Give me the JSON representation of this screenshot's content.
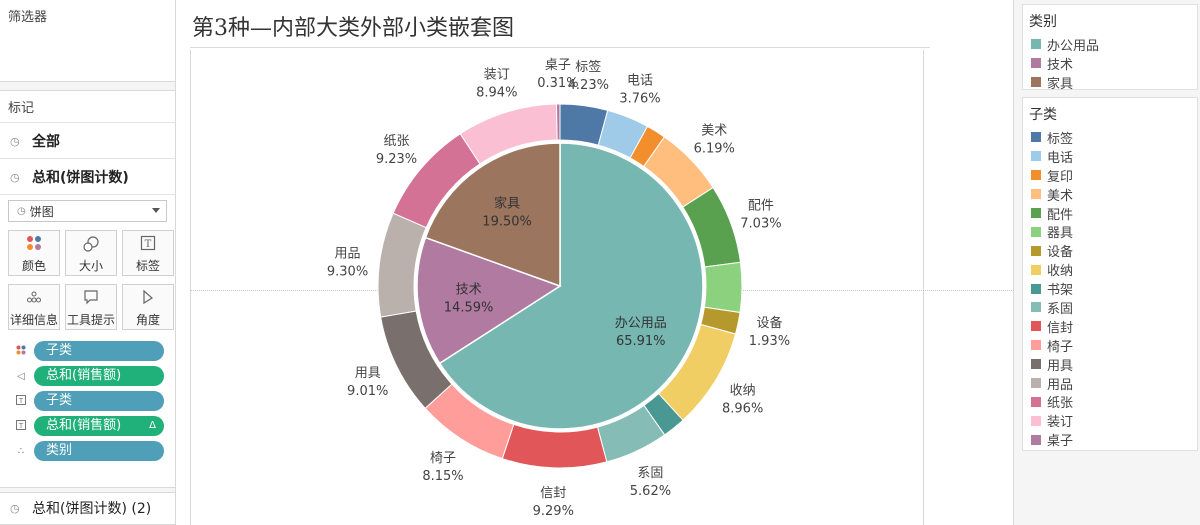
{
  "filters": {
    "title": "筛选器"
  },
  "marks": {
    "title": "标记",
    "all_label": "全部",
    "sum_label": "总和(饼图计数)",
    "mark_type": "饼图",
    "buttons": [
      {
        "label": "颜色",
        "icon": "color-dots-icon"
      },
      {
        "label": "大小",
        "icon": "size-icon"
      },
      {
        "label": "标签",
        "icon": "label-icon"
      },
      {
        "label": "详细信息",
        "icon": "detail-icon"
      },
      {
        "label": "工具提示",
        "icon": "tooltip-icon"
      },
      {
        "label": "角度",
        "icon": "angle-icon"
      }
    ],
    "pills": [
      {
        "label": "子类",
        "kind": "color",
        "color": "blue"
      },
      {
        "label": "总和(销售额)",
        "kind": "angle",
        "color": "green"
      },
      {
        "label": "子类",
        "kind": "label",
        "color": "blue"
      },
      {
        "label": "总和(销售额)",
        "kind": "label",
        "color": "green",
        "delta": "Δ"
      },
      {
        "label": "类别",
        "kind": "detail",
        "color": "blue"
      }
    ],
    "sum2_label": "总和(饼图计数) (2)"
  },
  "sheet": {
    "title": "第3种—内部大类外部小类嵌套图"
  },
  "legend_category": {
    "title": "类别",
    "items": [
      {
        "label": "办公用品",
        "color": "#76b7b2"
      },
      {
        "label": "技术",
        "color": "#b07aa1"
      },
      {
        "label": "家具",
        "color": "#9c755f"
      }
    ]
  },
  "legend_subcategory": {
    "title": "子类",
    "items": [
      {
        "label": "标签",
        "color": "#4e79a7"
      },
      {
        "label": "电话",
        "color": "#a0cbe8"
      },
      {
        "label": "复印",
        "color": "#f28e2b"
      },
      {
        "label": "美术",
        "color": "#ffbe7d"
      },
      {
        "label": "配件",
        "color": "#59a14f"
      },
      {
        "label": "器具",
        "color": "#8cd17d"
      },
      {
        "label": "设备",
        "color": "#b6992d"
      },
      {
        "label": "收纳",
        "color": "#f1ce63"
      },
      {
        "label": "书架",
        "color": "#499894"
      },
      {
        "label": "系固",
        "color": "#86bcb6"
      },
      {
        "label": "信封",
        "color": "#e15759"
      },
      {
        "label": "椅子",
        "color": "#ff9d9a"
      },
      {
        "label": "用具",
        "color": "#79706e"
      },
      {
        "label": "用品",
        "color": "#bab0ac"
      },
      {
        "label": "纸张",
        "color": "#d37295"
      },
      {
        "label": "装订",
        "color": "#fabfd2"
      },
      {
        "label": "桌子",
        "color": "#b07aa1"
      }
    ]
  },
  "chart_data": {
    "type": "pie",
    "title": "第3种—内部大类外部小类嵌套图",
    "inner": [
      {
        "name": "办公用品",
        "percent": 65.91,
        "label": "65.91%",
        "color": "#76b7b2"
      },
      {
        "name": "技术",
        "percent": 14.59,
        "label": "14.59%",
        "color": "#b07aa1"
      },
      {
        "name": "家具",
        "percent": 19.5,
        "label": "19.50%",
        "color": "#9c755f"
      }
    ],
    "outer": [
      {
        "name": "标签",
        "percent": 4.23,
        "label": "4.23%",
        "color": "#4e79a7",
        "show": true
      },
      {
        "name": "电话",
        "percent": 3.76,
        "label": "3.76%",
        "color": "#a0cbe8",
        "show": true
      },
      {
        "name": "复印",
        "percent": 1.75,
        "label": "",
        "color": "#f28e2b",
        "show": false
      },
      {
        "name": "美术",
        "percent": 6.19,
        "label": "6.19%",
        "color": "#ffbe7d",
        "show": true
      },
      {
        "name": "配件",
        "percent": 7.03,
        "label": "7.03%",
        "color": "#59a14f",
        "show": true
      },
      {
        "name": "器具",
        "percent": 4.41,
        "label": "",
        "color": "#8cd17d",
        "show": false
      },
      {
        "name": "设备",
        "percent": 1.93,
        "label": "1.93%",
        "color": "#b6992d",
        "show": true
      },
      {
        "name": "收纳",
        "percent": 8.96,
        "label": "8.96%",
        "color": "#f1ce63",
        "show": true
      },
      {
        "name": "书架",
        "percent": 2.06,
        "label": "",
        "color": "#499894",
        "show": false
      },
      {
        "name": "系固",
        "percent": 5.62,
        "label": "5.62%",
        "color": "#86bcb6",
        "show": true
      },
      {
        "name": "信封",
        "percent": 9.29,
        "label": "9.29%",
        "color": "#e15759",
        "show": true
      },
      {
        "name": "椅子",
        "percent": 8.15,
        "label": "8.15%",
        "color": "#ff9d9a",
        "show": true
      },
      {
        "name": "用具",
        "percent": 9.01,
        "label": "9.01%",
        "color": "#79706e",
        "show": true
      },
      {
        "name": "用品",
        "percent": 9.3,
        "label": "9.30%",
        "color": "#bab0ac",
        "show": true
      },
      {
        "name": "纸张",
        "percent": 9.23,
        "label": "9.23%",
        "color": "#d37295",
        "show": true
      },
      {
        "name": "装订",
        "percent": 8.94,
        "label": "8.94%",
        "color": "#fabfd2",
        "show": true
      },
      {
        "name": "桌子",
        "percent": 0.31,
        "label": "0.31%",
        "color": "#b07aa1",
        "show": true
      }
    ]
  }
}
